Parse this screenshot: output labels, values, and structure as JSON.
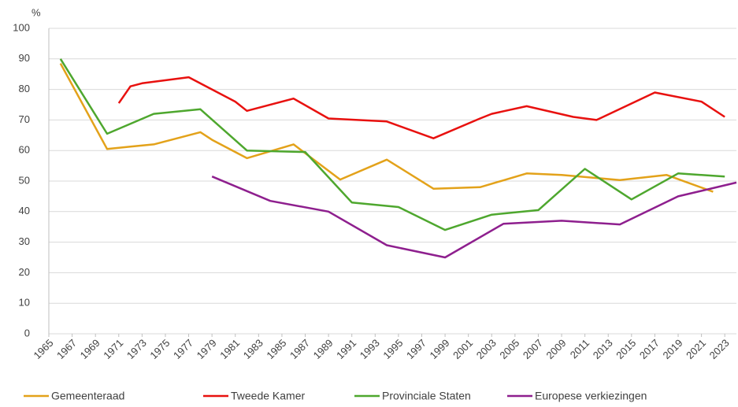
{
  "chart_data": {
    "type": "line",
    "y_unit": "%",
    "xlim": [
      1965,
      2024
    ],
    "xticks": [
      1965,
      1967,
      1969,
      1971,
      1973,
      1975,
      1977,
      1979,
      1981,
      1983,
      1985,
      1987,
      1989,
      1991,
      1993,
      1995,
      1997,
      1999,
      2001,
      2003,
      2005,
      2007,
      2009,
      2011,
      2013,
      2015,
      2017,
      2019,
      2021,
      2023
    ],
    "ylim": [
      0,
      100
    ],
    "yticks": [
      0,
      10,
      20,
      30,
      40,
      50,
      60,
      70,
      80,
      90,
      100
    ],
    "grid": true,
    "legend": "bottom",
    "series": [
      {
        "name": "Gemeenteraad",
        "color": "#e3a21a",
        "x": [
          1966,
          1970,
          1972,
          1974,
          1978,
          1979,
          1982,
          1986,
          1990,
          1994,
          1998,
          2002,
          2006,
          2009,
          2014,
          2018,
          2022
        ],
        "values": [
          88.5,
          60.5,
          61.3,
          62,
          66,
          63.5,
          57.5,
          62,
          50.5,
          57,
          47.5,
          48,
          52.5,
          52,
          50.3,
          52,
          46.5
        ]
      },
      {
        "name": "Tweede Kamer",
        "color": "#e8110f",
        "x": [
          1971,
          1972,
          1973,
          1977,
          1981,
          1982,
          1986,
          1989,
          1994,
          1998,
          2002,
          2003,
          2006,
          2010,
          2012,
          2017,
          2021,
          2023
        ],
        "values": [
          75.5,
          81,
          82,
          84,
          76,
          73,
          77,
          70.5,
          69.5,
          64,
          70.5,
          72,
          74.5,
          71,
          70,
          79,
          76,
          71
        ]
      },
      {
        "name": "Provinciale Staten",
        "color": "#4ea72e",
        "x": [
          1966,
          1970,
          1974,
          1978,
          1982,
          1987,
          1991,
          1995,
          1999,
          2003,
          2007,
          2011,
          2015,
          2019,
          2023
        ],
        "values": [
          90,
          65.5,
          72,
          73.5,
          60,
          59.5,
          43,
          41.5,
          34,
          39,
          40.5,
          54,
          44,
          52.5,
          51.5
        ]
      },
      {
        "name": "Europese verkiezingen",
        "color": "#8e1f8e",
        "x": [
          1979,
          1984,
          1989,
          1994,
          1999,
          2004,
          2009,
          2014,
          2019,
          2024
        ],
        "values": [
          51.5,
          43.5,
          40,
          29,
          25,
          36,
          37,
          35.8,
          45,
          49.5
        ]
      }
    ]
  }
}
